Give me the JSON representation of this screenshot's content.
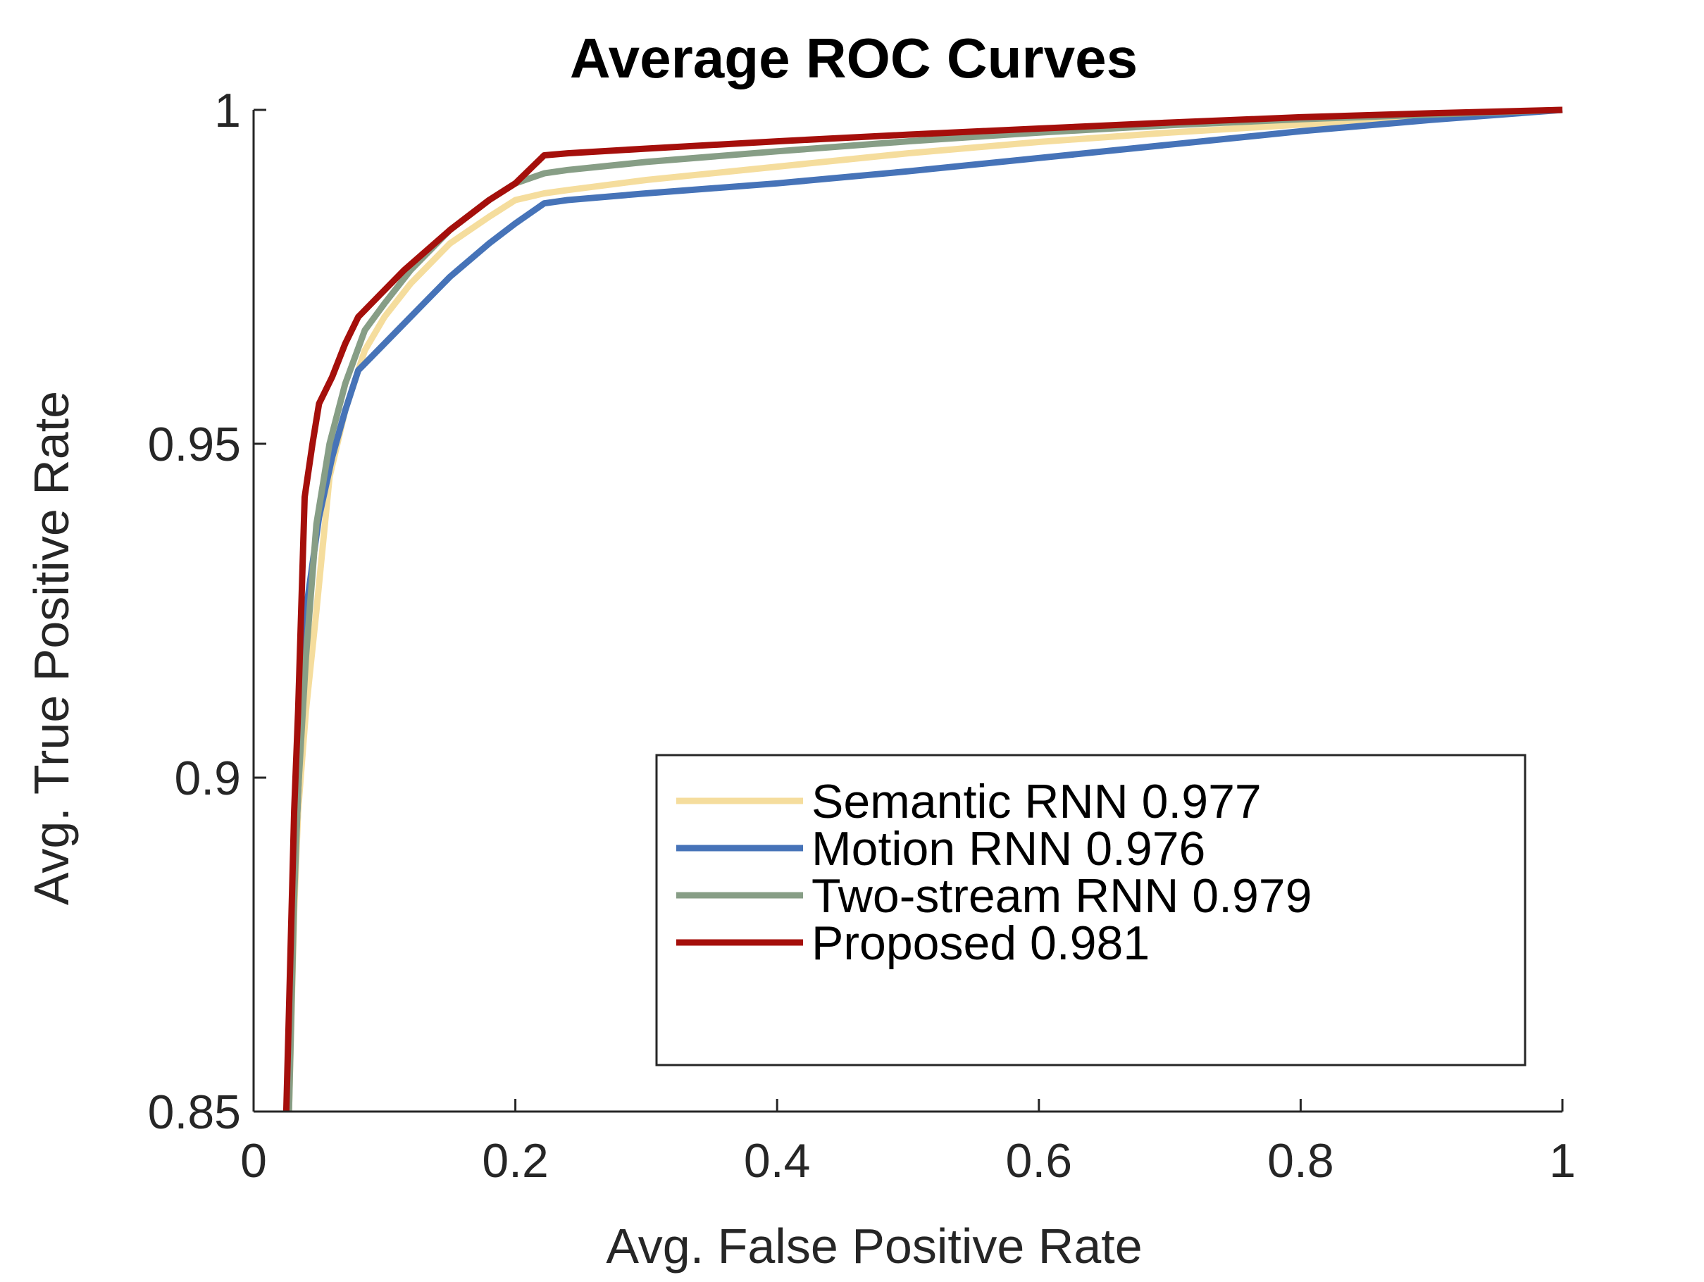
{
  "chart_data": {
    "type": "line",
    "title": "Average ROC Curves",
    "xlabel": "Avg. False Positive Rate",
    "ylabel": "Avg. True Positive Rate",
    "xlim": [
      0,
      1
    ],
    "ylim": [
      0.85,
      1
    ],
    "xticks": [
      0,
      0.2,
      0.4,
      0.6,
      0.8,
      1
    ],
    "xtick_labels": [
      "0",
      "0.2",
      "0.4",
      "0.6",
      "0.8",
      "1"
    ],
    "yticks": [
      0.85,
      0.9,
      0.95,
      1
    ],
    "ytick_labels": [
      "0.85",
      "0.9",
      "0.95",
      "1"
    ],
    "grid": false,
    "legend_position": "bottom-right",
    "series": [
      {
        "name": "Semantic RNN 0.977",
        "color": "#f5dd9d",
        "x": [
          0.027,
          0.029,
          0.031,
          0.034,
          0.04,
          0.048,
          0.058,
          0.07,
          0.085,
          0.1,
          0.12,
          0.15,
          0.18,
          0.2,
          0.222,
          0.24,
          0.3,
          0.4,
          0.5,
          0.6,
          0.7,
          0.8,
          0.9,
          1.0
        ],
        "y": [
          0.85,
          0.865,
          0.88,
          0.895,
          0.91,
          0.925,
          0.945,
          0.955,
          0.964,
          0.969,
          0.974,
          0.98,
          0.984,
          0.9865,
          0.9875,
          0.988,
          0.9895,
          0.9915,
          0.9935,
          0.9952,
          0.9966,
          0.9978,
          0.9989,
          1.0
        ]
      },
      {
        "name": "Motion RNN 0.976",
        "color": "#4673b8",
        "x": [
          0.026,
          0.028,
          0.03,
          0.033,
          0.04,
          0.05,
          0.06,
          0.07,
          0.08,
          0.09,
          0.11,
          0.13,
          0.15,
          0.18,
          0.2,
          0.222,
          0.24,
          0.3,
          0.4,
          0.5,
          0.6,
          0.7,
          0.8,
          0.9,
          1.0
        ],
        "y": [
          0.85,
          0.865,
          0.88,
          0.893,
          0.925,
          0.939,
          0.948,
          0.955,
          0.961,
          0.963,
          0.967,
          0.971,
          0.975,
          0.98,
          0.983,
          0.986,
          0.9865,
          0.9875,
          0.989,
          0.9908,
          0.9928,
          0.9948,
          0.9968,
          0.9985,
          1.0
        ]
      },
      {
        "name": "Two-stream RNN 0.979",
        "color": "#879e86",
        "x": [
          0.027,
          0.029,
          0.031,
          0.034,
          0.04,
          0.048,
          0.058,
          0.07,
          0.085,
          0.1,
          0.12,
          0.15,
          0.18,
          0.2,
          0.222,
          0.24,
          0.3,
          0.4,
          0.5,
          0.6,
          0.7,
          0.8,
          0.9,
          1.0
        ],
        "y": [
          0.85,
          0.866,
          0.882,
          0.898,
          0.918,
          0.938,
          0.95,
          0.959,
          0.967,
          0.971,
          0.976,
          0.982,
          0.9865,
          0.989,
          0.9905,
          0.991,
          0.9922,
          0.9938,
          0.9953,
          0.9966,
          0.9977,
          0.9986,
          0.9993,
          1.0
        ]
      },
      {
        "name": "Proposed 0.981",
        "color": "#a50f0b",
        "x": [
          0.025,
          0.027,
          0.029,
          0.031,
          0.034,
          0.039,
          0.045,
          0.05,
          0.06,
          0.07,
          0.08,
          0.095,
          0.115,
          0.15,
          0.18,
          0.2,
          0.222,
          0.24,
          0.3,
          0.4,
          0.5,
          0.6,
          0.7,
          0.8,
          0.9,
          1.0
        ],
        "y": [
          0.85,
          0.865,
          0.88,
          0.895,
          0.91,
          0.942,
          0.95,
          0.956,
          0.96,
          0.965,
          0.969,
          0.972,
          0.976,
          0.982,
          0.9865,
          0.989,
          0.9932,
          0.9935,
          0.9942,
          0.9953,
          0.9963,
          0.9972,
          0.9981,
          0.9989,
          0.9995,
          1.0
        ]
      }
    ]
  }
}
